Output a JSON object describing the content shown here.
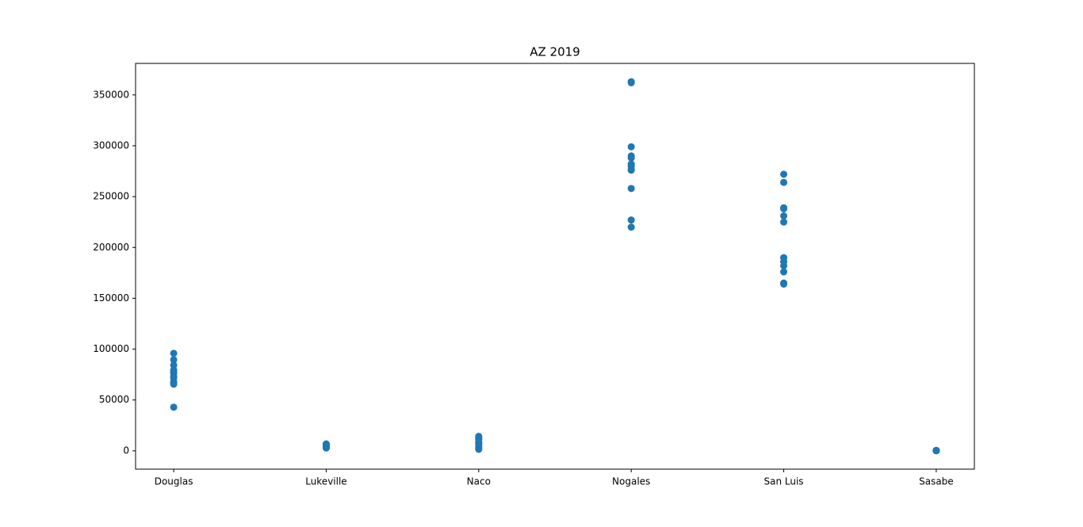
{
  "chart_data": {
    "type": "scatter",
    "title": "AZ 2019",
    "categories": [
      "Douglas",
      "Lukeville",
      "Naco",
      "Nogales",
      "San Luis",
      "Sasabe"
    ],
    "color": "#1f77b4",
    "ylim": [
      -18000,
      381000
    ],
    "yticks": [
      0,
      50000,
      100000,
      150000,
      200000,
      250000,
      300000,
      350000
    ],
    "grid": false,
    "x": [
      "Douglas",
      "Douglas",
      "Douglas",
      "Douglas",
      "Douglas",
      "Douglas",
      "Douglas",
      "Douglas",
      "Douglas",
      "Douglas",
      "Douglas",
      "Douglas",
      "Lukeville",
      "Lukeville",
      "Lukeville",
      "Lukeville",
      "Lukeville",
      "Lukeville",
      "Lukeville",
      "Lukeville",
      "Lukeville",
      "Lukeville",
      "Lukeville",
      "Lukeville",
      "Naco",
      "Naco",
      "Naco",
      "Naco",
      "Naco",
      "Naco",
      "Naco",
      "Naco",
      "Naco",
      "Naco",
      "Naco",
      "Naco",
      "Nogales",
      "Nogales",
      "Nogales",
      "Nogales",
      "Nogales",
      "Nogales",
      "Nogales",
      "Nogales",
      "Nogales",
      "Nogales",
      "Nogales",
      "Nogales",
      "San Luis",
      "San Luis",
      "San Luis",
      "San Luis",
      "San Luis",
      "San Luis",
      "San Luis",
      "San Luis",
      "San Luis",
      "San Luis",
      "San Luis",
      "San Luis",
      "Sasabe",
      "Sasabe",
      "Sasabe",
      "Sasabe",
      "Sasabe",
      "Sasabe",
      "Sasabe",
      "Sasabe",
      "Sasabe",
      "Sasabe",
      "Sasabe",
      "Sasabe"
    ],
    "values": [
      95900,
      89600,
      84200,
      79500,
      77600,
      76400,
      73200,
      71700,
      68000,
      66300,
      65500,
      42900,
      6800,
      5500,
      4500,
      3500,
      3000,
      2800,
      3200,
      4000,
      5000,
      6000,
      6300,
      5800,
      14200,
      13000,
      11500,
      9000,
      7500,
      6000,
      4500,
      3000,
      2000,
      1500,
      12500,
      8000,
      363000,
      362000,
      299000,
      290000,
      288000,
      282000,
      280000,
      277000,
      276000,
      258000,
      227000,
      220000,
      272000,
      264000,
      239000,
      238000,
      231000,
      225000,
      190000,
      186000,
      182000,
      176000,
      165000,
      164000,
      300,
      250,
      200,
      400,
      350,
      150,
      280,
      320,
      220,
      180,
      260,
      300
    ]
  }
}
